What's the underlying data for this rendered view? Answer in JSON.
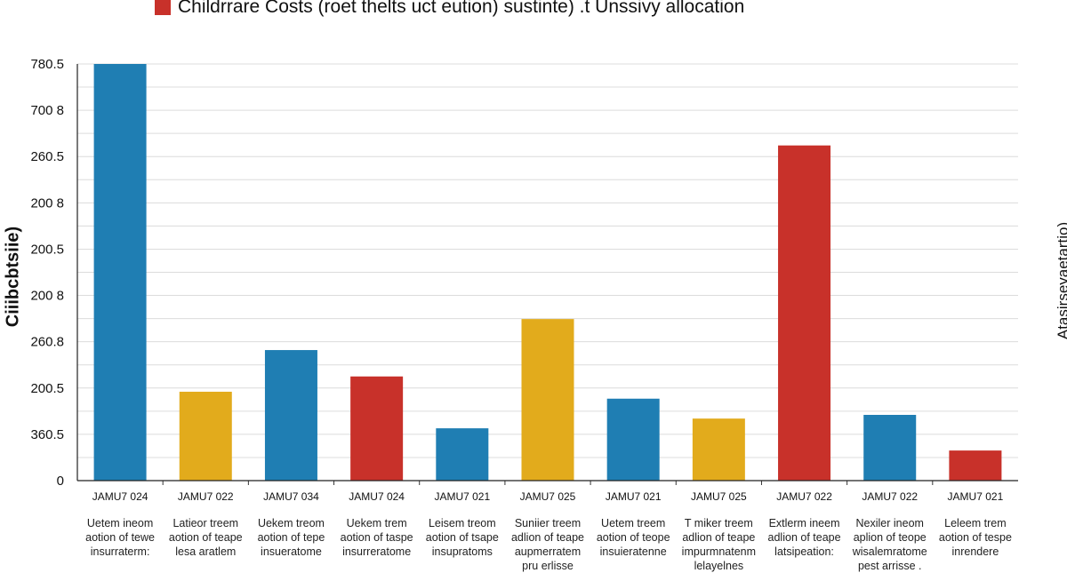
{
  "chart_data": {
    "type": "bar",
    "title": "",
    "legend": [
      {
        "label": "Childrrare Costs (roet thelts uct eution) sustinte) .t  Unssivy allocation",
        "color": "#c8312a"
      }
    ],
    "legend_placement": "top",
    "ylabel": "Ciiibcbtsiie)",
    "ylabel_right": "Atasirseyaetartio)",
    "yticks": [
      "0",
      "360.5",
      "200.5",
      "260.8",
      "200 8",
      "200.5",
      "200 8",
      "260.5",
      "700 8",
      "780.5"
    ],
    "ylim": [
      0,
      9
    ],
    "grid": true,
    "categories": [
      "JAMU7 024",
      "JAMU7 022",
      "JAMU7 034",
      "JAMU7 024",
      "JAMU7 021",
      "JAMU7 025",
      "JAMU7 021",
      "JAMU7 025",
      "JAMU7 022",
      "JAMU7 022",
      "JAMU7 021"
    ],
    "descriptions": [
      [
        "Uetem ineom",
        "aotion of tewe",
        "insurraterm:"
      ],
      [
        "Latieor treem",
        "aotion of teape",
        "lesa aratlem"
      ],
      [
        "Uekem treom",
        "aotion of tepe",
        "insueratome"
      ],
      [
        "Uekem trem",
        "aotion of taspe",
        "insurreratome"
      ],
      [
        "Leisem treom",
        "aotion of tsape",
        "insupratoms"
      ],
      [
        "Suniier treem",
        "adlion of teape",
        "aupmerratem",
        "pru erlisse"
      ],
      [
        "Uetem treem",
        "aotion of teope",
        "insuieratenne"
      ],
      [
        "T miker treem",
        "adlion of teape",
        "impurmnatenm",
        "lelayelnes"
      ],
      [
        "Extlerm ineem",
        "adlion of teape",
        "latsipeation:"
      ],
      [
        "Nexiler ineom",
        "aplion of teope",
        "wisalemratome",
        "pest arrisse ."
      ],
      [
        "Leleem trem",
        "aotion of tespe",
        "inrendere"
      ]
    ],
    "values": [
      9.0,
      1.92,
      2.82,
      2.25,
      1.13,
      3.49,
      1.77,
      1.34,
      7.24,
      1.42,
      0.65
    ],
    "colors": [
      "#1f7eb3",
      "#e2ab1c",
      "#1f7eb3",
      "#c8312a",
      "#1f7eb3",
      "#e2ab1c",
      "#1f7eb3",
      "#e2ab1c",
      "#c8312a",
      "#1f7eb3",
      "#c8312a"
    ]
  }
}
